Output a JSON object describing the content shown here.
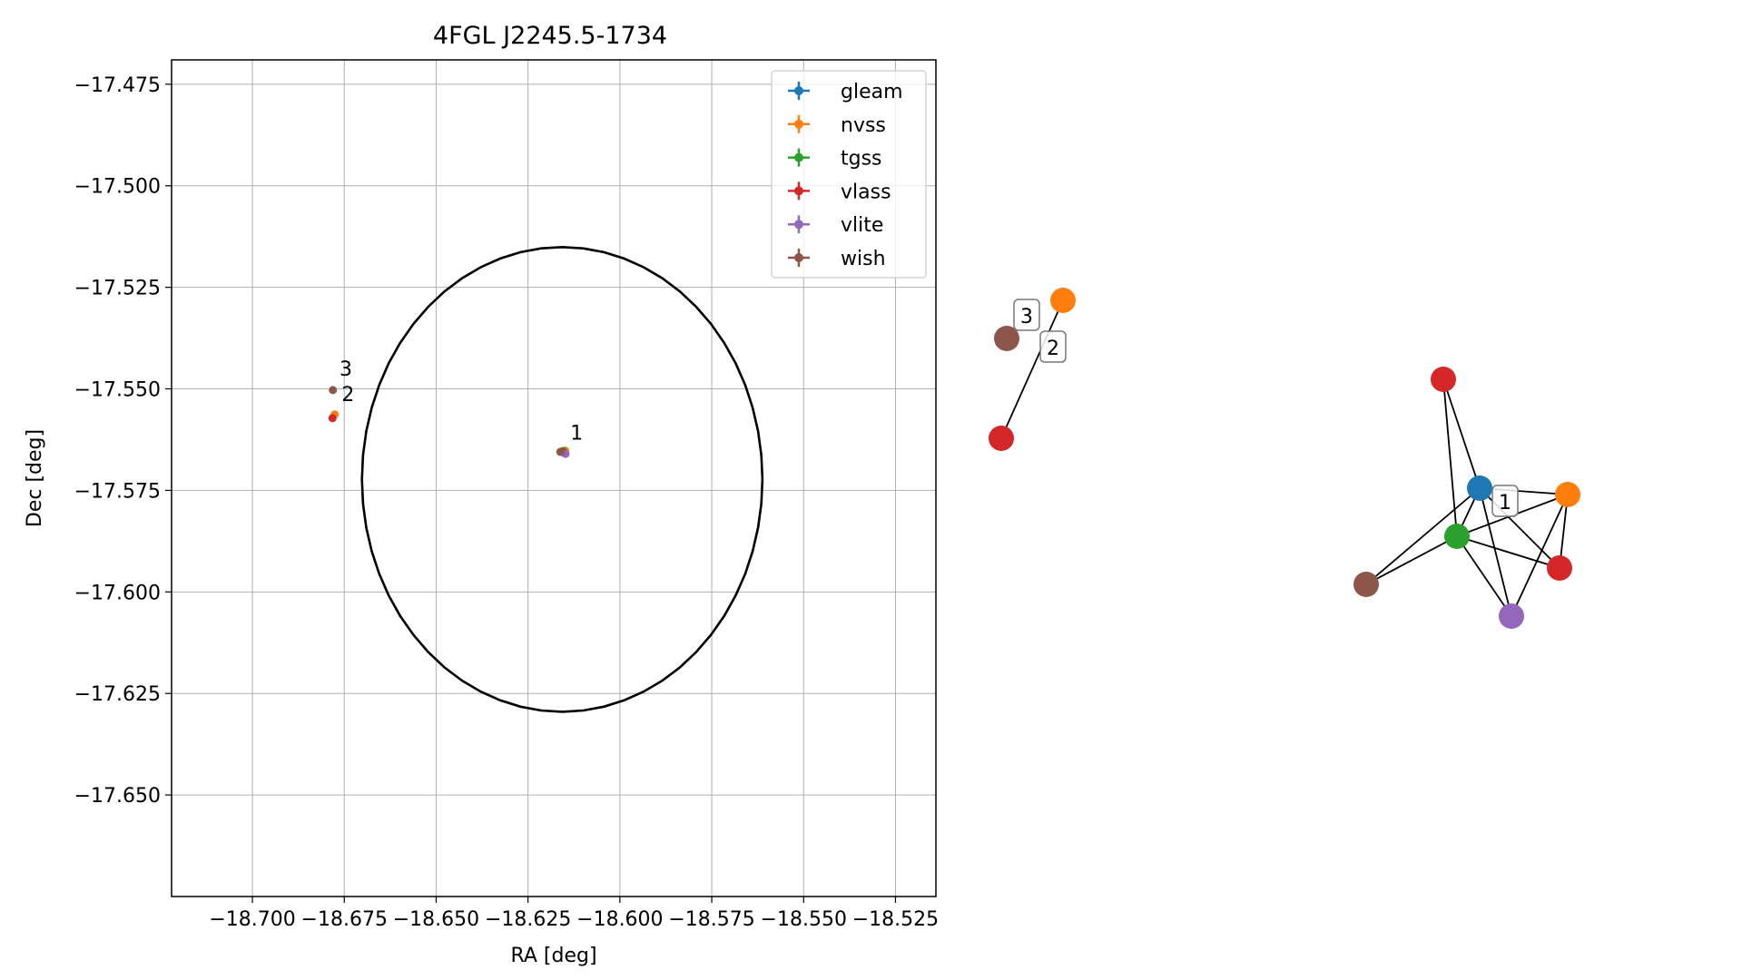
{
  "chart_data": [
    {
      "type": "scatter",
      "title": "4FGL J2245.5-1734",
      "xlabel": "RA [deg]",
      "ylabel": "Dec [deg]",
      "xlim": [
        -18.722,
        -18.514
      ],
      "ylim": [
        -17.675,
        -17.469
      ],
      "xticks": [
        -18.7,
        -18.675,
        -18.65,
        -18.625,
        -18.6,
        -18.575,
        -18.55,
        -18.525
      ],
      "xticklabels": [
        "−18.700",
        "−18.675",
        "−18.650",
        "−18.625",
        "−18.600",
        "−18.575",
        "−18.550",
        "−18.525"
      ],
      "yticks": [
        -17.475,
        -17.5,
        -17.525,
        -17.55,
        -17.575,
        -17.6,
        -17.625,
        -17.65
      ],
      "yticklabels": [
        "−17.475",
        "−17.500",
        "−17.525",
        "−17.550",
        "−17.575",
        "−17.600",
        "−17.625",
        "−17.650"
      ],
      "grid": true,
      "legend_position": "upper right",
      "series": [
        {
          "name": "gleam",
          "color": "#1f77b4",
          "points": [
            [
              -18.6152,
              -17.5657
            ]
          ]
        },
        {
          "name": "nvss",
          "color": "#ff7f0e",
          "points": [
            [
              -18.6776,
              -17.5563
            ],
            [
              -18.6149,
              -17.5652
            ]
          ]
        },
        {
          "name": "tgss",
          "color": "#2ca02c",
          "points": [
            [
              -18.6155,
              -17.5653
            ]
          ]
        },
        {
          "name": "vlass",
          "color": "#d62728",
          "points": [
            [
              -18.6782,
              -17.5572
            ],
            [
              -18.6153,
              -17.5657
            ]
          ]
        },
        {
          "name": "vlite",
          "color": "#9467bd",
          "points": [
            [
              -18.6148,
              -17.566
            ]
          ]
        },
        {
          "name": "wish",
          "color": "#8c564b",
          "points": [
            [
              -18.6781,
              -17.5503
            ],
            [
              -18.6162,
              -17.5655
            ]
          ]
        }
      ],
      "ellipse": {
        "center": [
          -18.6157,
          -17.5723
        ],
        "semi_axis_ra": 0.0545,
        "semi_axis_dec": 0.0572
      },
      "annotations": [
        {
          "text": "1",
          "x": -18.6135,
          "y": -17.5625
        },
        {
          "text": "2",
          "x": -18.6757,
          "y": -17.553
        },
        {
          "text": "3",
          "x": -18.6763,
          "y": -17.5468
        }
      ]
    },
    {
      "type": "network",
      "nodes": [
        {
          "id": "a_nvss",
          "color": "#ff7f0e"
        },
        {
          "id": "a_wish",
          "color": "#8c564b"
        },
        {
          "id": "a_vlass",
          "color": "#d62728"
        },
        {
          "id": "b_vlass_top",
          "color": "#d62728"
        },
        {
          "id": "b_gleam",
          "color": "#1f77b4"
        },
        {
          "id": "b_nvss",
          "color": "#ff7f0e"
        },
        {
          "id": "b_tgss",
          "color": "#2ca02c"
        },
        {
          "id": "b_wish",
          "color": "#8c564b"
        },
        {
          "id": "b_vlass_right",
          "color": "#d62728"
        },
        {
          "id": "b_vlite",
          "color": "#9467bd"
        }
      ],
      "edges": [
        [
          "a_nvss",
          "a_vlass"
        ],
        [
          "b_vlass_top",
          "b_gleam"
        ],
        [
          "b_vlass_top",
          "b_tgss"
        ],
        [
          "b_gleam",
          "b_nvss"
        ],
        [
          "b_gleam",
          "b_tgss"
        ],
        [
          "b_gleam",
          "b_wish"
        ],
        [
          "b_gleam",
          "b_vlass_right"
        ],
        [
          "b_gleam",
          "b_vlite"
        ],
        [
          "b_nvss",
          "b_tgss"
        ],
        [
          "b_nvss",
          "b_vlass_right"
        ],
        [
          "b_nvss",
          "b_vlite"
        ],
        [
          "b_tgss",
          "b_wish"
        ],
        [
          "b_tgss",
          "b_vlass_right"
        ],
        [
          "b_tgss",
          "b_vlite"
        ]
      ],
      "labels": [
        "3",
        "2",
        "1"
      ]
    }
  ]
}
